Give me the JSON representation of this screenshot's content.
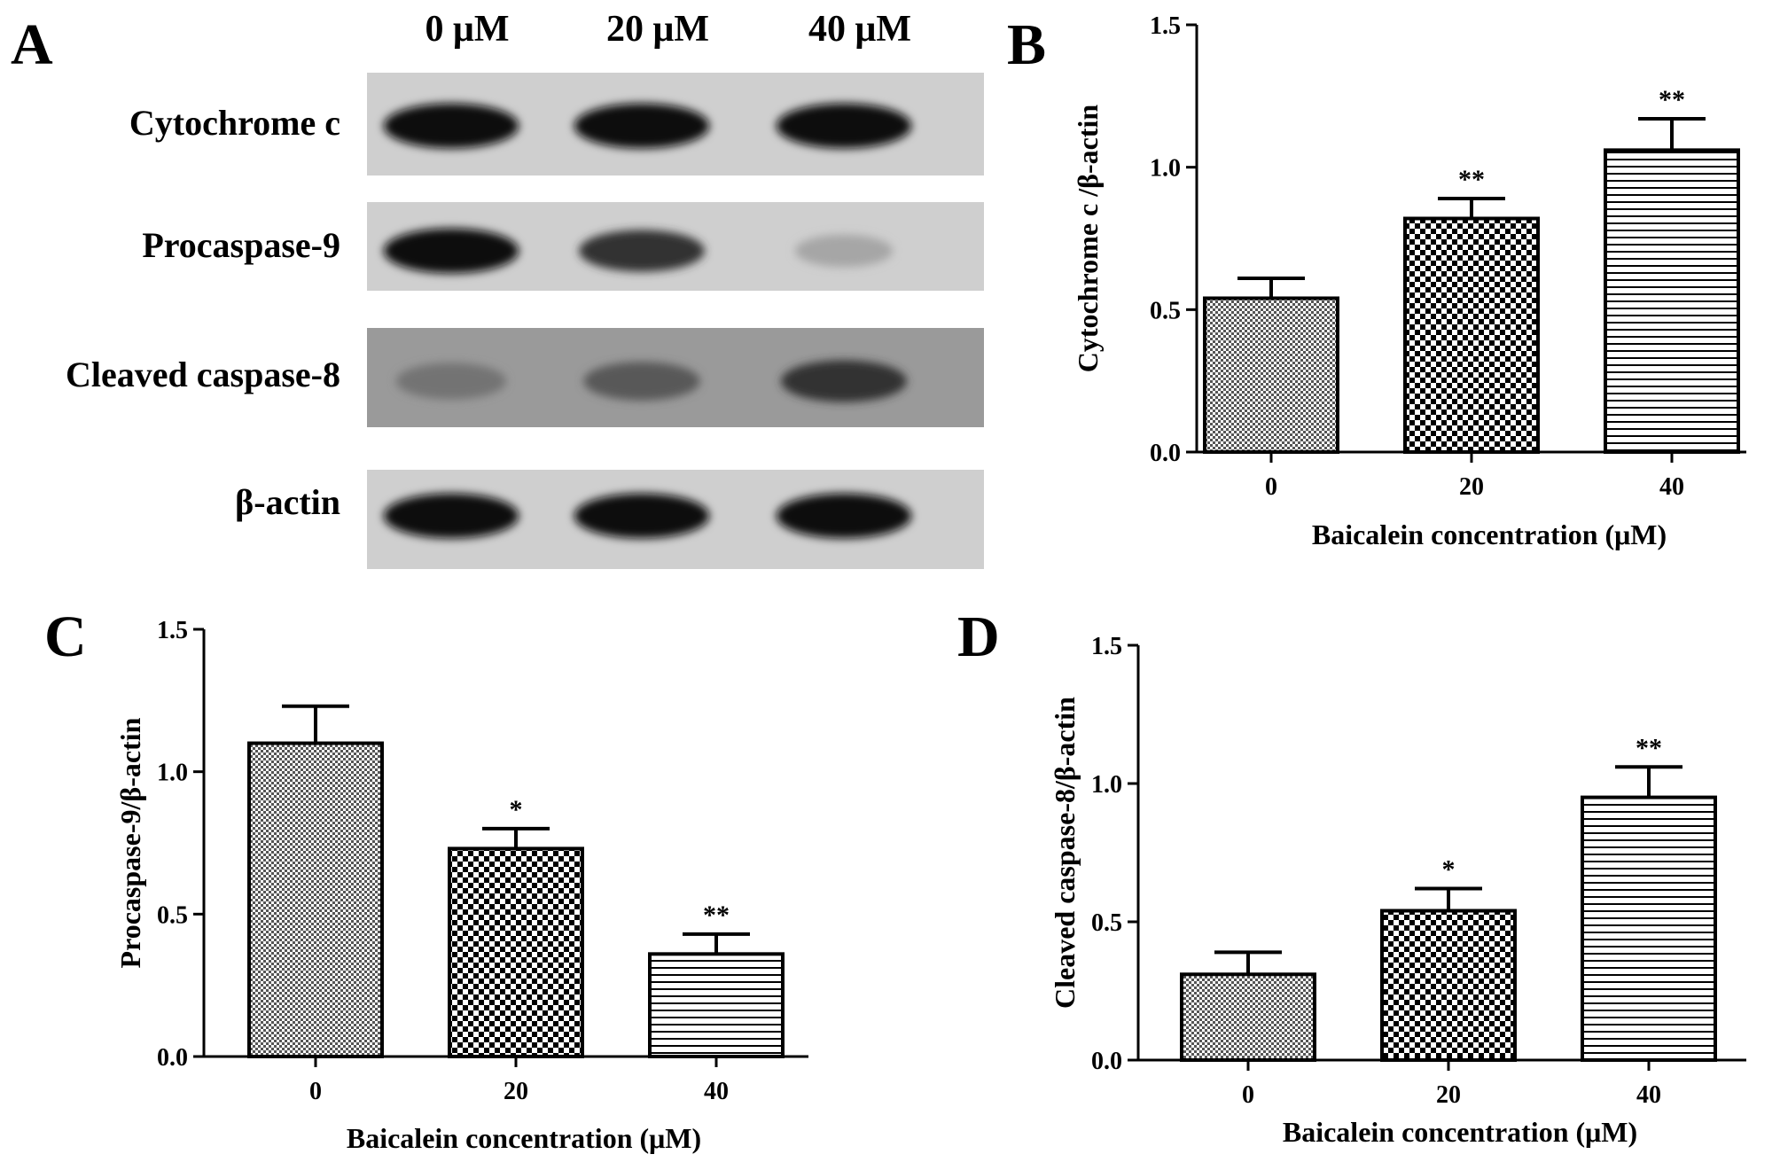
{
  "panels": {
    "A": "A",
    "B": "B",
    "C": "C",
    "D": "D"
  },
  "blot": {
    "lanes": [
      "0 μM",
      "20 μM",
      "40 μM"
    ],
    "rows": [
      {
        "label": "Cytochrome c",
        "intensities": [
          0.95,
          0.95,
          0.95
        ]
      },
      {
        "label": "Procaspase-9",
        "intensities": [
          0.95,
          0.8,
          0.35
        ]
      },
      {
        "label": "Cleaved caspase-8",
        "intensities": [
          0.55,
          0.65,
          0.8
        ]
      },
      {
        "label": "β-actin",
        "intensities": [
          0.95,
          0.95,
          0.95
        ]
      }
    ]
  },
  "chart_data": [
    {
      "panel": "B",
      "type": "bar",
      "categories": [
        "0",
        "20",
        "40"
      ],
      "values": [
        0.54,
        0.82,
        1.06
      ],
      "errors": [
        0.07,
        0.07,
        0.11
      ],
      "significance": [
        "",
        "**",
        "**"
      ],
      "patterns": [
        "fine-check",
        "coarse-check",
        "horizontal-lines"
      ],
      "xlabel": "Baicalein  concentration (μM)",
      "ylabel": "Cytochrome c /β-actin",
      "ylim": [
        0,
        1.5
      ],
      "yticks": [
        "0.0",
        "0.5",
        "1.0",
        "1.5"
      ]
    },
    {
      "panel": "C",
      "type": "bar",
      "categories": [
        "0",
        "20",
        "40"
      ],
      "values": [
        1.1,
        0.73,
        0.36
      ],
      "errors": [
        0.13,
        0.07,
        0.07
      ],
      "significance": [
        "",
        "*",
        "**"
      ],
      "patterns": [
        "fine-check",
        "coarse-check",
        "horizontal-lines"
      ],
      "xlabel": "Baicalein  concentration (μM)",
      "ylabel": "Procaspase-9/β-actin",
      "ylim": [
        0,
        1.5
      ],
      "yticks": [
        "0.0",
        "0.5",
        "1.0",
        "1.5"
      ]
    },
    {
      "panel": "D",
      "type": "bar",
      "categories": [
        "0",
        "20",
        "40"
      ],
      "values": [
        0.31,
        0.54,
        0.95
      ],
      "errors": [
        0.08,
        0.08,
        0.11
      ],
      "significance": [
        "",
        "*",
        "**"
      ],
      "patterns": [
        "fine-check",
        "coarse-check",
        "horizontal-lines"
      ],
      "xlabel": "Baicalein  concentration (μM)",
      "ylabel": "Cleaved caspase-8/β-actin",
      "ylim": [
        0,
        1.5
      ],
      "yticks": [
        "0.0",
        "0.5",
        "1.0",
        "1.5"
      ]
    }
  ]
}
